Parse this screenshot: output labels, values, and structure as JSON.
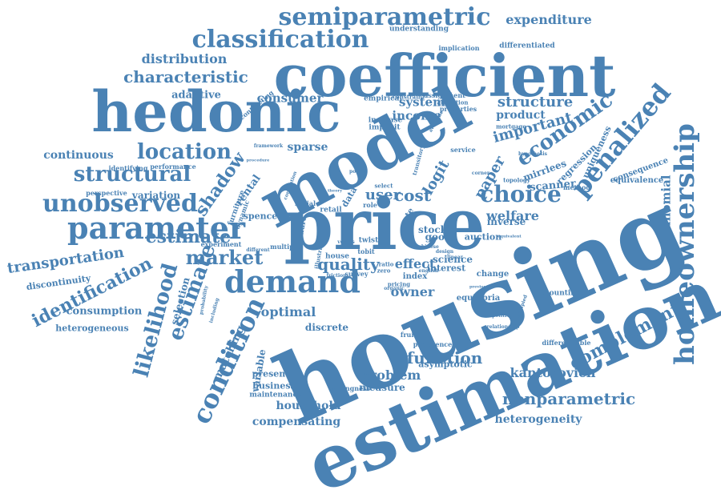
{
  "theme": {
    "word_color": "#4a82b4",
    "background": "#ffffff"
  },
  "words": [
    {
      "text": "housing"
    },
    {
      "text": "estimation"
    },
    {
      "text": "price"
    },
    {
      "text": "model"
    },
    {
      "text": "coefficient"
    },
    {
      "text": "hedonic"
    },
    {
      "text": "homeownership"
    },
    {
      "text": "parameter"
    },
    {
      "text": "unobserved"
    },
    {
      "text": "demand"
    },
    {
      "text": "semiparametric"
    },
    {
      "text": "classification"
    },
    {
      "text": "structural"
    },
    {
      "text": "location"
    },
    {
      "text": "likelihood"
    },
    {
      "text": "identification"
    },
    {
      "text": "condition"
    },
    {
      "text": "estimate"
    },
    {
      "text": "estimate"
    },
    {
      "text": "market"
    },
    {
      "text": "penalized"
    },
    {
      "text": "economic"
    },
    {
      "text": "choice"
    },
    {
      "text": "nonparametric"
    },
    {
      "text": "complement"
    },
    {
      "text": "function"
    },
    {
      "text": "quality"
    },
    {
      "text": "characteristic"
    },
    {
      "text": "distribution"
    },
    {
      "text": "transportation"
    },
    {
      "text": "shadow"
    },
    {
      "text": "continuous"
    },
    {
      "text": "expenditure"
    },
    {
      "text": "structure"
    },
    {
      "text": "important"
    },
    {
      "text": "optimal"
    },
    {
      "text": "kantorovich"
    },
    {
      "text": "heterogeneity"
    },
    {
      "text": "household"
    },
    {
      "text": "compensating"
    },
    {
      "text": "multinomial"
    },
    {
      "text": "consumption"
    },
    {
      "text": "consumer"
    },
    {
      "text": "adaptive"
    },
    {
      "text": "income"
    },
    {
      "text": "system"
    },
    {
      "text": "product"
    },
    {
      "text": "cost"
    },
    {
      "text": "user"
    },
    {
      "text": "logit"
    },
    {
      "text": "paper"
    },
    {
      "text": "welfare"
    },
    {
      "text": "problem"
    },
    {
      "text": "owner"
    },
    {
      "text": "effect"
    },
    {
      "text": "sparse"
    },
    {
      "text": "variation"
    },
    {
      "text": "selection"
    },
    {
      "text": "discrete"
    },
    {
      "text": "matching"
    },
    {
      "text": "variable"
    },
    {
      "text": "business"
    },
    {
      "text": "measure"
    },
    {
      "text": "heterogeneous"
    },
    {
      "text": "scanner"
    },
    {
      "text": "mirrlees"
    },
    {
      "text": "stock"
    },
    {
      "text": "good"
    },
    {
      "text": "auction"
    },
    {
      "text": "science"
    },
    {
      "text": "index"
    },
    {
      "text": "interest"
    },
    {
      "text": "rental"
    },
    {
      "text": "spence"
    },
    {
      "text": "present"
    },
    {
      "text": "maintenance"
    },
    {
      "text": "understanding"
    },
    {
      "text": "differentiated"
    },
    {
      "text": "implication"
    },
    {
      "text": "assignment"
    },
    {
      "text": "empirical"
    },
    {
      "text": "constraint"
    },
    {
      "text": "allocation"
    },
    {
      "text": "properties"
    },
    {
      "text": "increase"
    },
    {
      "text": "implicit"
    },
    {
      "text": "equivalence"
    },
    {
      "text": "consequence"
    },
    {
      "text": "regression"
    },
    {
      "text": "uniqueness"
    },
    {
      "text": "method"
    },
    {
      "text": "equilibria"
    },
    {
      "text": "change"
    },
    {
      "text": "accounting"
    },
    {
      "text": "inverse"
    },
    {
      "text": "asymptotic"
    },
    {
      "text": "preference"
    },
    {
      "text": "differentiable"
    },
    {
      "text": "discontinuity"
    },
    {
      "text": "experiment"
    },
    {
      "text": "performance"
    },
    {
      "text": "identifying"
    },
    {
      "text": "perspective"
    },
    {
      "text": "service"
    },
    {
      "text": "willingness"
    },
    {
      "text": "social"
    },
    {
      "text": "retail"
    },
    {
      "text": "role"
    },
    {
      "text": "multiple"
    },
    {
      "text": "survey"
    },
    {
      "text": "house"
    },
    {
      "text": "tenure"
    },
    {
      "text": "twist"
    },
    {
      "text": "tobit"
    },
    {
      "text": "data"
    },
    {
      "text": "rate"
    },
    {
      "text": "fruit"
    },
    {
      "text": "mortgage"
    },
    {
      "text": "topology"
    },
    {
      "text": "english"
    },
    {
      "text": "pricing"
    },
    {
      "text": "competitive"
    },
    {
      "text": "relationship"
    },
    {
      "text": "dynamic"
    },
    {
      "text": "probability"
    },
    {
      "text": "furniture"
    },
    {
      "text": "select"
    },
    {
      "text": "ratio"
    },
    {
      "text": "zero"
    },
    {
      "text": "design"
    },
    {
      "text": "framework"
    },
    {
      "text": "procedure"
    },
    {
      "text": "correlation"
    },
    {
      "text": "policy"
    },
    {
      "text": "available"
    },
    {
      "text": "corner"
    },
    {
      "text": "hypothesis"
    },
    {
      "text": "including"
    },
    {
      "text": "different"
    },
    {
      "text": "illustrate"
    },
    {
      "text": "friction"
    },
    {
      "text": "equivalent"
    },
    {
      "text": "organic"
    },
    {
      "text": "theory"
    },
    {
      "text": "previous"
    },
    {
      "text": "contracting"
    },
    {
      "text": "transitory"
    },
    {
      "text": "occupied"
    },
    {
      "text": "linear"
    },
    {
      "text": "chinese"
    },
    {
      "text": "versus"
    }
  ]
}
